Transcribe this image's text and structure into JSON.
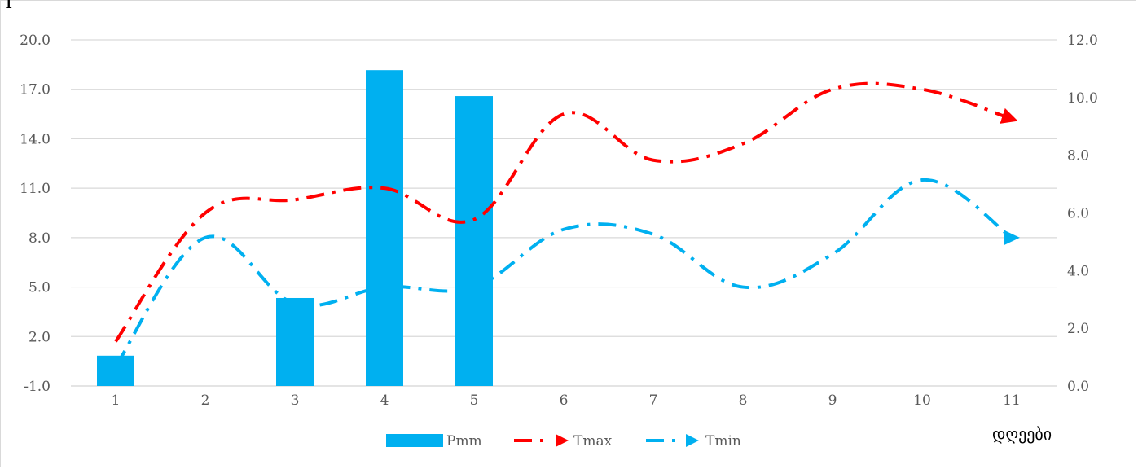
{
  "chart_data": {
    "type": "bar",
    "corner_label": "I",
    "xlabel": "დღეები",
    "categories": [
      "1",
      "2",
      "3",
      "4",
      "5",
      "6",
      "7",
      "8",
      "9",
      "10",
      "11"
    ],
    "y_left": {
      "min": -1.0,
      "max": 20.0,
      "ticks": [
        "20.0",
        "17.0",
        "14.0",
        "11.0",
        "8.0",
        "5.0",
        "2.0",
        "-1.0"
      ],
      "tick_values": [
        20,
        17,
        14,
        11,
        8,
        5,
        2,
        -1
      ]
    },
    "y_right": {
      "min": 0.0,
      "max": 12.0,
      "ticks": [
        "12.0",
        "10.0",
        "8.0",
        "6.0",
        "4.0",
        "2.0",
        "0.0"
      ],
      "tick_values": [
        12,
        10,
        8,
        6,
        4,
        2,
        0
      ]
    },
    "grid": true,
    "legend_position": "bottom",
    "series": [
      {
        "name": "Pmm",
        "kind": "bar",
        "axis": "right",
        "color": "#00b0f0",
        "values": [
          1.05,
          0,
          3.05,
          10.95,
          10.05,
          0,
          0,
          0,
          0,
          0,
          0
        ]
      },
      {
        "name": "Tmax",
        "kind": "line",
        "axis": "left",
        "color": "#ff0000",
        "style": "dash-dot",
        "marker": "arrow",
        "values": [
          1.7,
          9.5,
          10.3,
          11.0,
          9.1,
          15.5,
          12.7,
          13.7,
          17.0,
          17.0,
          15.2
        ]
      },
      {
        "name": "Tmin",
        "kind": "line",
        "axis": "left",
        "color": "#00b0f0",
        "style": "dash-dot",
        "marker": "triangle",
        "values": [
          0.2,
          8.0,
          4.0,
          5.0,
          5.0,
          8.5,
          8.2,
          5.0,
          7.0,
          11.5,
          8.0
        ]
      }
    ]
  }
}
